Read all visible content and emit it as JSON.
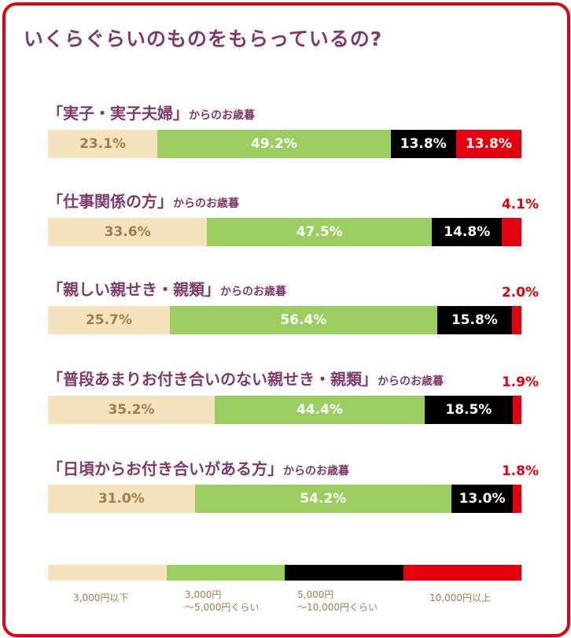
{
  "colors": {
    "frame": "#e6000f",
    "title": "#7d3a6a",
    "seg1": "#f5e3bd",
    "seg2": "#9ccd60",
    "seg3": "#000000",
    "seg4": "#e6000f"
  },
  "chart_data": {
    "type": "bar",
    "orientation": "horizontal-stacked",
    "title": "いくらぐらいのものをもらっているの?",
    "legend_position": "bottom",
    "legend": [
      {
        "line1": "3,000円以下",
        "line2": ""
      },
      {
        "line1": "3,000円",
        "line2": "〜5,000円くらい"
      },
      {
        "line1": "5,000円",
        "line2": "〜10,000円くらい"
      },
      {
        "line1": "10,000円以上",
        "line2": ""
      }
    ],
    "groups": [
      {
        "label_main": "「実子・実子夫婦」",
        "label_sub": "からのお歳暮",
        "values": [
          23.1,
          49.2,
          13.8,
          13.8
        ],
        "value_labels": [
          "23.1%",
          "49.2%",
          "13.8%",
          "13.8%"
        ]
      },
      {
        "label_main": "「仕事関係の方」",
        "label_sub": "からのお歳暮",
        "values": [
          33.6,
          47.5,
          14.8,
          4.1
        ],
        "value_labels": [
          "33.6%",
          "47.5%",
          "14.8%",
          "4.1%"
        ]
      },
      {
        "label_main": "「親しい親せき・親類」",
        "label_sub": "からのお歳暮",
        "values": [
          25.7,
          56.4,
          15.8,
          2.0
        ],
        "value_labels": [
          "25.7%",
          "56.4%",
          "15.8%",
          "2.0%"
        ]
      },
      {
        "label_main": "「普段あまりお付き合いのない親せき・親類」",
        "label_sub": "からのお歳暮",
        "values": [
          35.2,
          44.4,
          18.5,
          1.9
        ],
        "value_labels": [
          "35.2%",
          "44.4%",
          "18.5%",
          "1.9%"
        ]
      },
      {
        "label_main": "「日頃からお付き合いがある方」",
        "label_sub": "からのお歳暮",
        "values": [
          31.0,
          54.2,
          13.0,
          1.8
        ],
        "value_labels": [
          "31.0%",
          "54.2%",
          "13.0%",
          "1.8%"
        ]
      }
    ]
  }
}
